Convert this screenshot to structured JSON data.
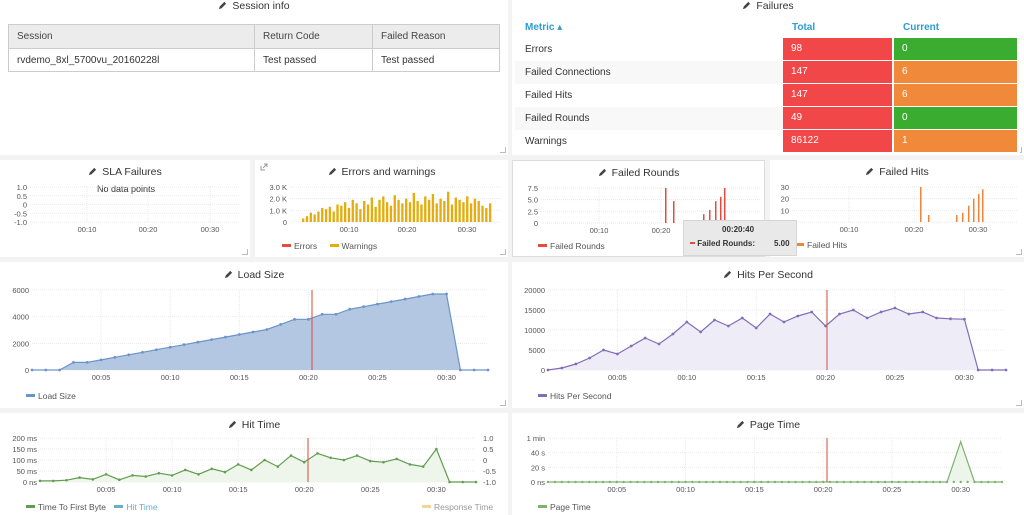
{
  "colors": {
    "errors": "#e24d42",
    "warnings": "#e5ac0e",
    "failed_rounds": "#e24d42",
    "failed_hits": "#ef843c",
    "load_size": "#6d94c9",
    "hits_per_second": "#806eb7",
    "ttfb": "#629e51",
    "hit_time": "#64b0c8",
    "response_time": "#f4d598",
    "page_time": "#7eb26d",
    "red_cell": "#f14748",
    "green_cell": "#3aad31",
    "orange_cell": "#f0893a"
  },
  "session_info": {
    "title": "Session info",
    "columns": [
      "Session",
      "Return Code",
      "Failed Reason"
    ],
    "row": [
      "rvdemo_8xl_5700vu_20160228l",
      "Test passed",
      "Test passed"
    ]
  },
  "failures": {
    "title": "Failures",
    "headers": {
      "metric": "Metric ▴",
      "total": "Total",
      "current": "Current"
    },
    "rows": [
      {
        "label": "Errors",
        "total": "98",
        "current": "0",
        "total_color": "red",
        "current_color": "green"
      },
      {
        "label": "Failed Connections",
        "total": "147",
        "current": "6",
        "total_color": "red",
        "current_color": "orange"
      },
      {
        "label": "Failed Hits",
        "total": "147",
        "current": "6",
        "total_color": "red",
        "current_color": "orange"
      },
      {
        "label": "Failed Rounds",
        "total": "49",
        "current": "0",
        "total_color": "red",
        "current_color": "green"
      },
      {
        "label": "Warnings",
        "total": "86122",
        "current": "1",
        "total_color": "red",
        "current_color": "orange"
      }
    ]
  },
  "sla": {
    "title": "SLA Failures",
    "no_data": "No data points",
    "yticks": [
      "1.0",
      "0.5",
      "0",
      "-0.5",
      "-1.0"
    ],
    "xticks": [
      "00:10",
      "00:20",
      "00:30"
    ]
  },
  "errors_warnings": {
    "title": "Errors and warnings",
    "yticks": [
      "3.0 K",
      "2.0 K",
      "1.0 K",
      "0"
    ],
    "xticks": [
      "00:10",
      "00:20",
      "00:30"
    ],
    "legend": [
      "Errors",
      "Warnings"
    ]
  },
  "failed_rounds": {
    "title": "Failed Rounds",
    "yticks": [
      "7.5",
      "5.0",
      "2.5",
      "0"
    ],
    "xticks": [
      "00:10",
      "00:20",
      "00:30"
    ],
    "legend": [
      "Failed Rounds"
    ]
  },
  "failed_hits": {
    "title": "Failed Hits",
    "yticks": [
      "30",
      "20",
      "10",
      "0"
    ],
    "xticks": [
      "00:10",
      "00:20",
      "00:30"
    ],
    "legend": [
      "Failed Hits"
    ]
  },
  "tooltip": {
    "time": "00:20:40",
    "label": "Failed Rounds:",
    "value": "5.00"
  },
  "load_size": {
    "title": "Load Size",
    "yticks": [
      "6000",
      "4000",
      "2000",
      "0"
    ],
    "xticks": [
      "00:05",
      "00:10",
      "00:15",
      "00:20",
      "00:25",
      "00:30"
    ],
    "legend": [
      "Load Size"
    ]
  },
  "hits_per_second": {
    "title": "Hits Per Second",
    "yticks": [
      "20000",
      "15000",
      "10000",
      "5000",
      "0"
    ],
    "xticks": [
      "00:05",
      "00:10",
      "00:15",
      "00:20",
      "00:25",
      "00:30"
    ],
    "legend": [
      "Hits Per Second"
    ]
  },
  "hit_time": {
    "title": "Hit Time",
    "yticks": [
      "200 ms",
      "150 ms",
      "100 ms",
      "50 ms",
      "0 ns"
    ],
    "yticks_right": [
      "1.0",
      "0.5",
      "0",
      "-0.5",
      "-1.0"
    ],
    "xticks": [
      "00:05",
      "00:10",
      "00:15",
      "00:20",
      "00:25",
      "00:30"
    ],
    "legend": [
      "Time To First Byte",
      "Hit Time",
      "Response Time"
    ]
  },
  "page_time": {
    "title": "Page Time",
    "yticks": [
      "1 min",
      "40 s",
      "20 s",
      "0 ns"
    ],
    "xticks": [
      "00:05",
      "00:10",
      "00:15",
      "00:20",
      "00:25",
      "00:30"
    ],
    "legend": [
      "Page Time"
    ]
  },
  "chart_data": [
    {
      "type": "bar",
      "title": "Errors and warnings",
      "series": [
        {
          "name": "Errors",
          "values": [
            0,
            0,
            0,
            0,
            0,
            0,
            0,
            0,
            0,
            0,
            0,
            0,
            0,
            0,
            0,
            0,
            0,
            0,
            0,
            0,
            0,
            0,
            0,
            0,
            0,
            0,
            0,
            0,
            0,
            0,
            0,
            0,
            0,
            0,
            0,
            0,
            0,
            0,
            0,
            0,
            0,
            0,
            0,
            0,
            0,
            0,
            0,
            0,
            0,
            0
          ]
        },
        {
          "name": "Warnings",
          "values": [
            300,
            500,
            800,
            650,
            900,
            1200,
            1100,
            1300,
            900,
            1500,
            1400,
            1700,
            1200,
            1900,
            1600,
            1100,
            1800,
            1500,
            2100,
            1300,
            1900,
            2200,
            1700,
            1400,
            2300,
            1900,
            1600,
            2000,
            1700,
            2500,
            1800,
            1500,
            2200,
            1900,
            2400,
            1600,
            2000,
            1800,
            2600,
            1500,
            2100,
            1900,
            1700,
            2200,
            1600,
            2000,
            1800,
            1400,
            1200,
            1600
          ]
        }
      ],
      "xlim": [
        "00:00",
        "00:32"
      ],
      "ylim": [
        0,
        3000
      ]
    },
    {
      "type": "bar",
      "title": "Failed Rounds",
      "series": [
        {
          "name": "Failed Rounds",
          "x": [
            "00:20",
            "00:20:40",
            "00:26",
            "00:27",
            "00:28",
            "00:29",
            "00:30"
          ],
          "values": [
            8,
            5,
            2,
            3,
            5,
            6,
            8
          ]
        }
      ],
      "xlim": [
        "00:00",
        "00:32"
      ],
      "ylim": [
        0,
        8
      ]
    },
    {
      "type": "bar",
      "title": "Failed Hits",
      "series": [
        {
          "name": "Failed Hits",
          "x": [
            "00:20",
            "00:21",
            "00:26",
            "00:27",
            "00:28",
            "00:29",
            "00:30",
            "00:31"
          ],
          "values": [
            30,
            6,
            6,
            8,
            14,
            20,
            24,
            28
          ]
        }
      ],
      "xlim": [
        "00:00",
        "00:32"
      ],
      "ylim": [
        0,
        30
      ]
    },
    {
      "type": "area",
      "title": "Load Size",
      "series": [
        {
          "name": "Load Size",
          "x_minutes": [
            0,
            1,
            2,
            3,
            4,
            5,
            6,
            7,
            8,
            9,
            10,
            11,
            12,
            13,
            14,
            15,
            16,
            17,
            18,
            19,
            20,
            21,
            22,
            23,
            24,
            25,
            26,
            27,
            28,
            29,
            30,
            31,
            32,
            33
          ],
          "values": [
            0,
            0,
            0,
            570,
            570,
            760,
            950,
            1140,
            1330,
            1520,
            1710,
            1900,
            2090,
            2280,
            2470,
            2660,
            2850,
            3040,
            3420,
            3800,
            3800,
            4180,
            4180,
            4560,
            4750,
            4940,
            5130,
            5320,
            5510,
            5700,
            5700,
            0,
            0,
            0
          ]
        }
      ],
      "ylim": [
        0,
        6000
      ]
    },
    {
      "type": "area",
      "title": "Hits Per Second",
      "series": [
        {
          "name": "Hits Per Second",
          "x_minutes": [
            0,
            1,
            2,
            3,
            4,
            5,
            6,
            7,
            8,
            9,
            10,
            11,
            12,
            13,
            14,
            15,
            16,
            17,
            18,
            19,
            20,
            21,
            22,
            23,
            24,
            25,
            26,
            27,
            28,
            29,
            30,
            31,
            32,
            33
          ],
          "values": [
            0,
            500,
            1500,
            3000,
            5000,
            4000,
            6000,
            8000,
            6500,
            9000,
            12000,
            9500,
            12500,
            11000,
            13000,
            10500,
            14000,
            12000,
            13500,
            14500,
            11000,
            14000,
            15000,
            13000,
            14500,
            15500,
            14000,
            14500,
            13000,
            12800,
            12700,
            0,
            0,
            0
          ]
        }
      ],
      "ylim": [
        0,
        20000
      ]
    },
    {
      "type": "line",
      "title": "Hit Time",
      "series": [
        {
          "name": "Time To First Byte",
          "x_minutes": [
            0,
            1,
            2,
            3,
            4,
            5,
            6,
            7,
            8,
            9,
            10,
            11,
            12,
            13,
            14,
            15,
            16,
            17,
            18,
            19,
            20,
            21,
            22,
            23,
            24,
            25,
            26,
            27,
            28,
            29,
            30,
            31,
            32,
            33
          ],
          "values": [
            5,
            5,
            8,
            20,
            12,
            35,
            10,
            30,
            25,
            40,
            30,
            55,
            35,
            60,
            45,
            80,
            55,
            100,
            70,
            120,
            90,
            130,
            110,
            100,
            120,
            95,
            90,
            105,
            80,
            70,
            150,
            0,
            0,
            0
          ]
        }
      ],
      "ylim": [
        0,
        200
      ],
      "y_unit": "ms"
    },
    {
      "type": "line",
      "title": "Page Time",
      "series": [
        {
          "name": "Page Time",
          "x_minutes": [
            0,
            5,
            10,
            15,
            20,
            25,
            29,
            30,
            31,
            33
          ],
          "values": [
            0,
            0,
            0,
            0,
            0,
            0,
            0,
            55,
            0,
            0
          ]
        }
      ],
      "ylim": [
        0,
        60
      ],
      "y_unit": "s"
    }
  ]
}
